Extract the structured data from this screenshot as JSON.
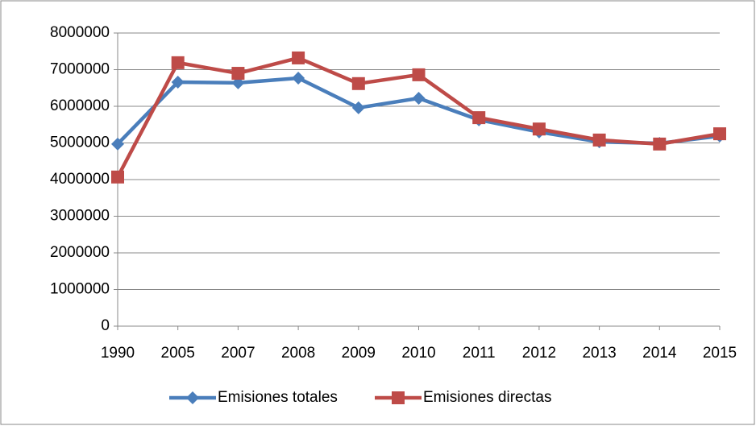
{
  "chart_data": {
    "type": "line",
    "categories": [
      "1990",
      "2005",
      "2007",
      "2008",
      "2009",
      "2010",
      "2011",
      "2012",
      "2013",
      "2014",
      "2015"
    ],
    "series": [
      {
        "name": "Emisiones totales",
        "color": "#4a7ebb",
        "marker": "diamond",
        "values": [
          4970000,
          6660000,
          6640000,
          6770000,
          5960000,
          6220000,
          5630000,
          5300000,
          5030000,
          4990000,
          5190000
        ]
      },
      {
        "name": "Emisiones directas",
        "color": "#be4b48",
        "marker": "square",
        "values": [
          4070000,
          7190000,
          6900000,
          7320000,
          6620000,
          6860000,
          5690000,
          5380000,
          5080000,
          4970000,
          5250000
        ]
      }
    ],
    "ylim": [
      0,
      8000000
    ],
    "yticks": [
      0,
      1000000,
      2000000,
      3000000,
      4000000,
      5000000,
      6000000,
      7000000,
      8000000
    ],
    "grid": true,
    "legend": "bottom"
  }
}
